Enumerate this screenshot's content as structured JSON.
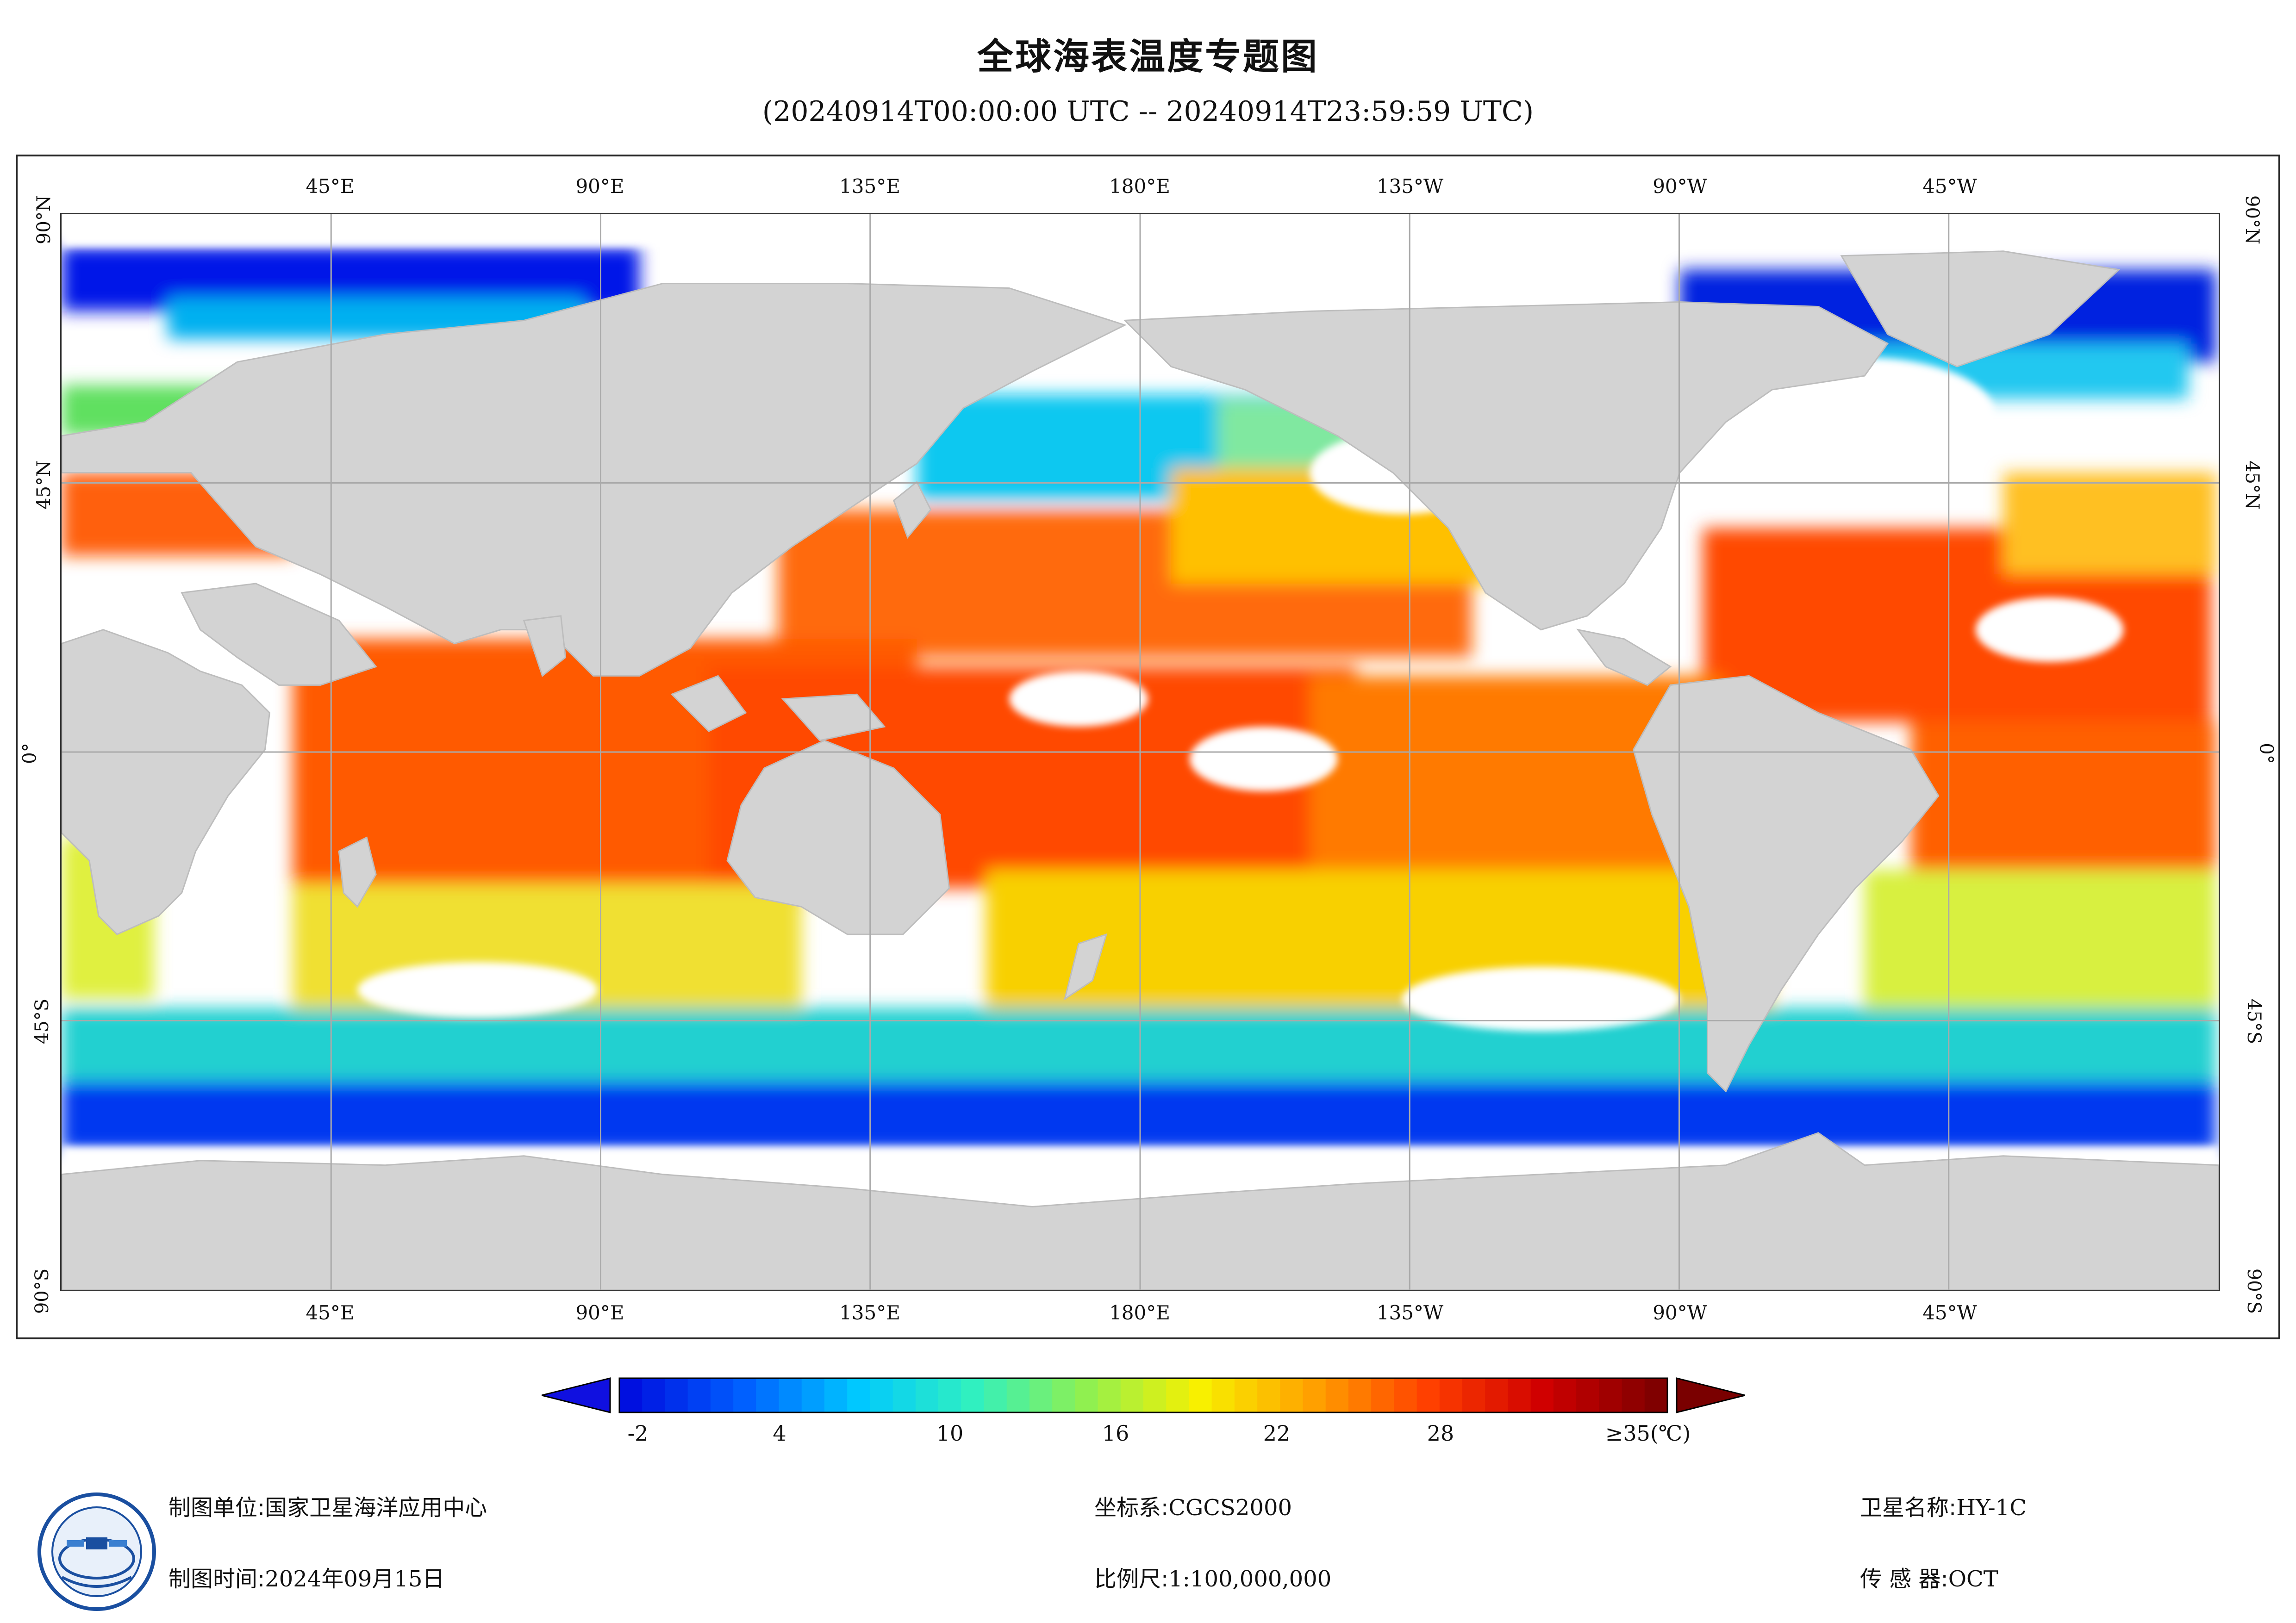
{
  "title": "全球海表温度专题图",
  "subtitle": "(20240914T00:00:00 UTC -- 20240914T23:59:59 UTC)",
  "longitude_labels": [
    "45°E",
    "90°E",
    "135°E",
    "180°E",
    "135°W",
    "90°W",
    "45°W"
  ],
  "latitude_labels": [
    "90°N",
    "45°N",
    "0°",
    "45°S",
    "90°S"
  ],
  "legend": {
    "ticks": [
      "-2",
      "4",
      "10",
      "16",
      "22",
      "28",
      "≥35(℃)"
    ],
    "min": -2,
    "max": 35,
    "colors": [
      "#0010e0",
      "#0060ff",
      "#00c8ff",
      "#30f0c0",
      "#90f050",
      "#f8f000",
      "#ffa000",
      "#ff4000",
      "#d00000",
      "#800000"
    ]
  },
  "footer": {
    "org_label": "制图单位:",
    "org_value": "国家卫星海洋应用中心",
    "date_label": "制图时间:",
    "date_value": "2024年09月15日",
    "crs_label": "坐标系:",
    "crs_value": "CGCS2000",
    "scale_label": "比例尺:",
    "scale_value": "1:100,000,000",
    "sat_label": "卫星名称:",
    "sat_value": "HY-1C",
    "sensor_label": "传 感 器:",
    "sensor_value": "OCT"
  },
  "colors": {
    "land": "#d3d3d3",
    "nodata": "#ffffff",
    "grid": "#aaaaaa"
  }
}
